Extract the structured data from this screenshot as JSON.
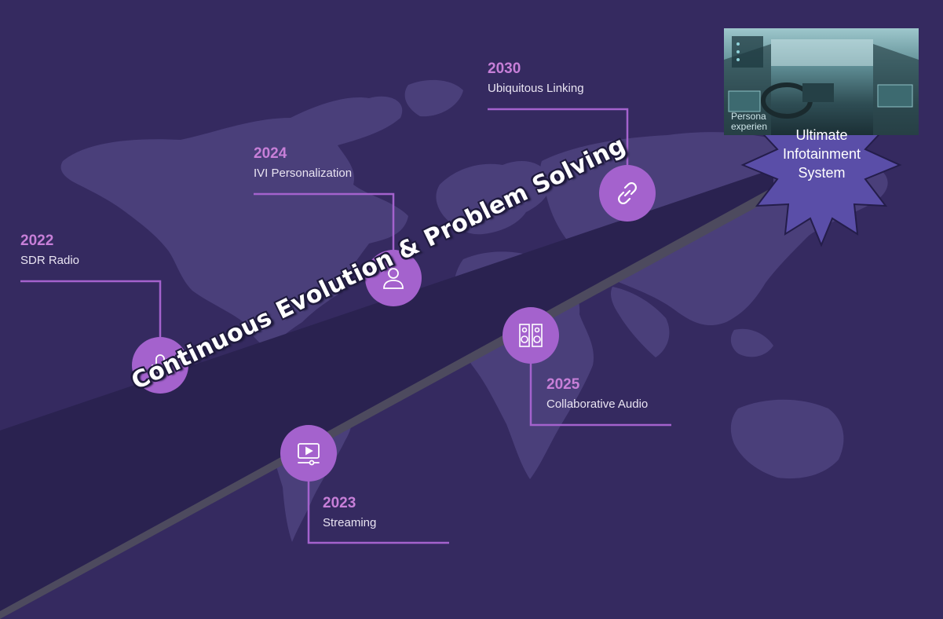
{
  "banner_text": "Continuous Evolution & Problem Solving",
  "milestones": [
    {
      "year": "2022",
      "label": "SDR Radio",
      "icon": "microphone-icon"
    },
    {
      "year": "2023",
      "label": "Streaming",
      "icon": "video-player-icon"
    },
    {
      "year": "2024",
      "label": "IVI Personalization",
      "icon": "user-icon"
    },
    {
      "year": "2025",
      "label": "Collaborative Audio",
      "icon": "speakers-icon"
    },
    {
      "year": "2030",
      "label": "Ubiquitous Linking",
      "icon": "link-icon"
    }
  ],
  "goal": {
    "line1": "Ultimate",
    "line2": "Infotainment",
    "line3": "System",
    "photo_caption_line1": "Persona",
    "photo_caption_line2": "experien"
  },
  "colors": {
    "background": "#352a60",
    "map": "#4a3f7a",
    "road": "#2a2250",
    "road_edge": "#4d4a5e",
    "accent": "#a462cd",
    "year": "#c77fd8",
    "star": "#5a4ea8"
  }
}
